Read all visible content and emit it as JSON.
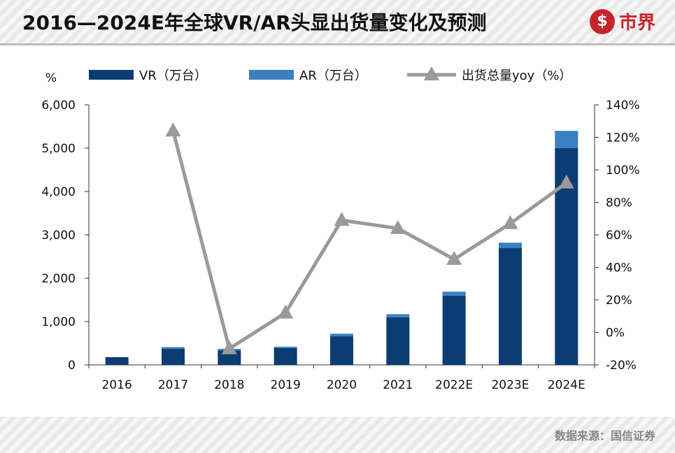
{
  "header": {
    "title": "2016—2024E年全球VR/AR头显出货量变化及预测",
    "logo_text": "市界",
    "logo_mark": "$"
  },
  "footer": {
    "source": "数据来源：国信证券"
  },
  "colors": {
    "vr": "#0b3d73",
    "ar": "#3a7fc1",
    "yoy": "#9a9a9a"
  },
  "chart_data": {
    "type": "bar",
    "stacked": true,
    "categories": [
      "2016",
      "2017",
      "2018",
      "2019",
      "2020",
      "2021",
      "2022E",
      "2023E",
      "2024E"
    ],
    "series": [
      {
        "name": "VR（万台）",
        "axis": "left",
        "kind": "bar",
        "values": [
          180,
          370,
          330,
          390,
          660,
          1100,
          1600,
          2700,
          5000
        ]
      },
      {
        "name": "AR（万台）",
        "axis": "left",
        "kind": "bar",
        "values": [
          0,
          40,
          40,
          30,
          60,
          70,
          90,
          120,
          400
        ]
      },
      {
        "name": "出货总量yoy（%）",
        "axis": "right",
        "kind": "line",
        "marker": "triangle",
        "values": [
          null,
          124,
          -10,
          12,
          69,
          64,
          45,
          67,
          92
        ]
      }
    ],
    "left_axis": {
      "label": "%",
      "ylim": [
        0,
        6000
      ],
      "ticks": [
        "0",
        "1,000",
        "2,000",
        "3,000",
        "4,000",
        "5,000",
        "6,000"
      ]
    },
    "right_axis": {
      "ylim": [
        -20,
        140
      ],
      "ticks": [
        "-20%",
        "0%",
        "20%",
        "40%",
        "60%",
        "80%",
        "100%",
        "120%",
        "140%"
      ]
    },
    "legend_position": "top"
  }
}
